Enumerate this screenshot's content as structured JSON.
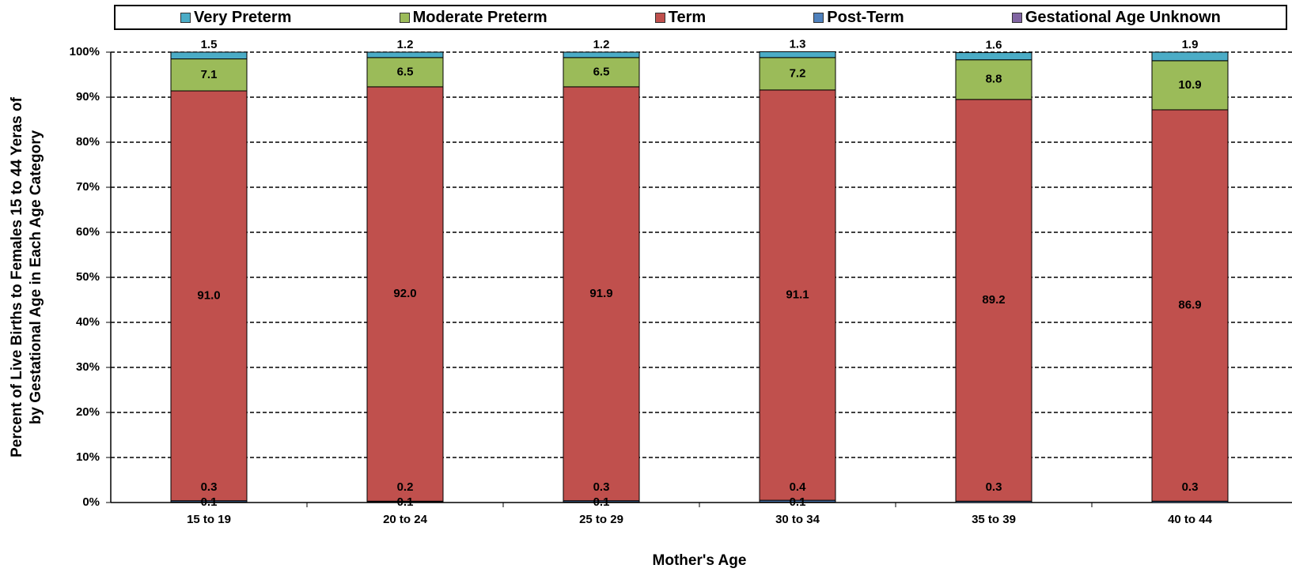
{
  "chart_data": {
    "type": "bar",
    "stacked": true,
    "title": "",
    "xlabel": "Mother's Age",
    "ylabel": [
      "Percent of Live Births to Females 15 to 44 Yeras of",
      "by Gestational Age in Each Age Category"
    ],
    "categories": [
      "15 to 19",
      "20 to 24",
      "25 to 29",
      "30 to 34",
      "35 to 39",
      "40 to 44"
    ],
    "ylim": [
      0,
      100
    ],
    "yticks": [
      "0%",
      "10%",
      "20%",
      "30%",
      "40%",
      "50%",
      "60%",
      "70%",
      "80%",
      "90%",
      "100%"
    ],
    "grid": "dashed horizontal",
    "legend_position": "top",
    "series": [
      {
        "name": "Gestational Age Unknown",
        "color": "#8064a2",
        "values": [
          0.1,
          0.1,
          0.1,
          0.1,
          0.0,
          0.0
        ],
        "labels": [
          "0.1",
          "0.1",
          "0.1",
          "0.1",
          "",
          ""
        ]
      },
      {
        "name": "Post-Term",
        "color": "#4f81bd",
        "values": [
          0.3,
          0.2,
          0.3,
          0.4,
          0.3,
          0.3
        ],
        "labels": [
          "0.3",
          "0.2",
          "0.3",
          "0.4",
          "0.3",
          "0.3"
        ]
      },
      {
        "name": "Term",
        "color": "#c0504d",
        "values": [
          91.0,
          92.0,
          91.9,
          91.1,
          89.2,
          86.9
        ],
        "labels": [
          "91.0",
          "92.0",
          "91.9",
          "91.1",
          "89.2",
          "86.9"
        ]
      },
      {
        "name": "Moderate Preterm",
        "color": "#9bbb59",
        "values": [
          7.1,
          6.5,
          6.5,
          7.2,
          8.8,
          10.9
        ],
        "labels": [
          "7.1",
          "6.5",
          "6.5",
          "7.2",
          "8.8",
          "10.9"
        ]
      },
      {
        "name": "Very Preterm",
        "color": "#4bacc6",
        "values": [
          1.5,
          1.2,
          1.2,
          1.3,
          1.6,
          1.9
        ],
        "labels": [
          "1.5",
          "1.2",
          "1.2",
          "1.3",
          "1.6",
          "1.9"
        ]
      }
    ],
    "legend": [
      {
        "name": "Very Preterm",
        "color": "#4bacc6"
      },
      {
        "name": "Moderate Preterm",
        "color": "#9bbb59"
      },
      {
        "name": "Term",
        "color": "#c0504d"
      },
      {
        "name": "Post-Term",
        "color": "#4f81bd"
      },
      {
        "name": "Gestational Age Unknown",
        "color": "#8064a2"
      }
    ]
  }
}
